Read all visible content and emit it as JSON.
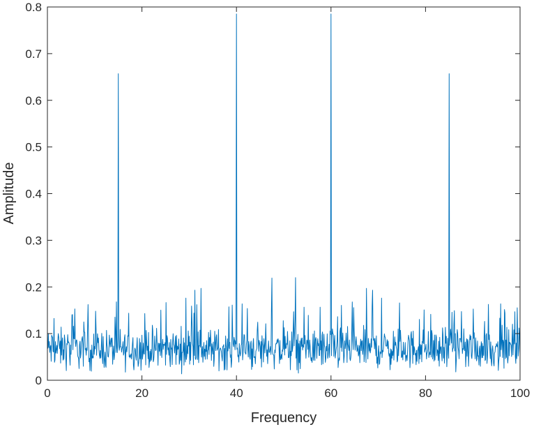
{
  "chart_data": {
    "type": "line",
    "title": "",
    "xlabel": "Frequency",
    "ylabel": "Amplitude",
    "xlim": [
      0,
      100
    ],
    "ylim": [
      0,
      0.8
    ],
    "xticks": [
      0,
      20,
      40,
      60,
      80,
      100
    ],
    "yticks": [
      0,
      0.1,
      0.2,
      0.3,
      0.4,
      0.5,
      0.6,
      0.7,
      0.8
    ],
    "xtick_labels": [
      "0",
      "20",
      "40",
      "60",
      "80",
      "100"
    ],
    "ytick_labels": [
      "0",
      "0.1",
      "0.2",
      "0.3",
      "0.4",
      "0.5",
      "0.6",
      "0.7",
      "0.8"
    ],
    "grid": false,
    "line_color": "#0072BD",
    "noise_floor": {
      "typical_range": [
        0.01,
        0.14
      ],
      "mean": 0.065
    },
    "peaks": [
      {
        "x": 15,
        "y": 0.657
      },
      {
        "x": 40,
        "y": 0.785
      },
      {
        "x": 60,
        "y": 0.785
      },
      {
        "x": 85,
        "y": 0.657
      }
    ],
    "secondary_peaks": [
      {
        "x": 29.3,
        "y": 0.176
      },
      {
        "x": 31.2,
        "y": 0.193
      },
      {
        "x": 32.5,
        "y": 0.197
      },
      {
        "x": 47.5,
        "y": 0.219
      },
      {
        "x": 52.5,
        "y": 0.22
      },
      {
        "x": 67.5,
        "y": 0.197
      },
      {
        "x": 68.8,
        "y": 0.193
      },
      {
        "x": 70.7,
        "y": 0.176
      }
    ]
  }
}
